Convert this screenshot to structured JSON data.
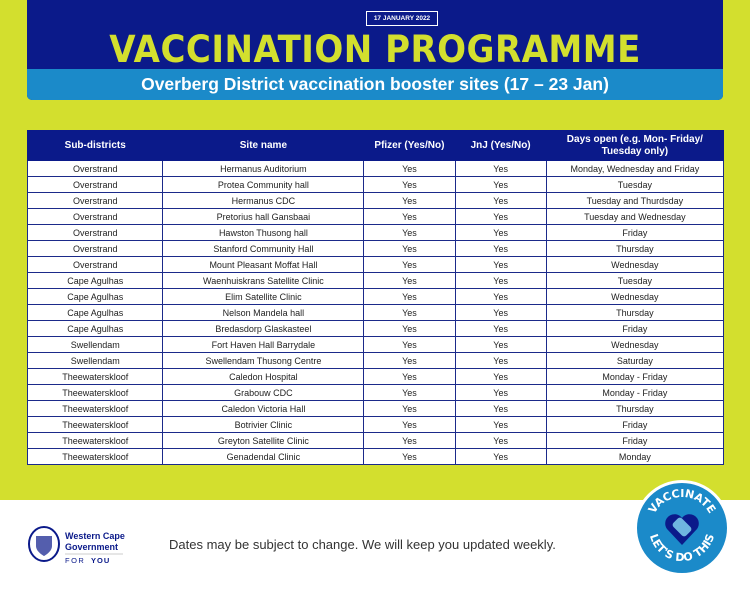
{
  "header": {
    "date": "17 JANUARY 2022",
    "title": "VACCINATION PROGRAMME",
    "subtitle": "Overberg District vaccination booster sites (17 – 23 Jan)"
  },
  "table": {
    "columns": [
      "Sub-districts",
      "Site name",
      "Pfizer (Yes/No)",
      "JnJ (Yes/No)",
      "Days open (e.g. Mon- Friday/ Tuesday only)"
    ],
    "rows": [
      [
        "Overstrand",
        "Hermanus Auditorium",
        "Yes",
        "Yes",
        "Monday, Wednesday and Friday"
      ],
      [
        "Overstrand",
        "Protea Community hall",
        "Yes",
        "Yes",
        "Tuesday"
      ],
      [
        "Overstrand",
        "Hermanus CDC",
        "Yes",
        "Yes",
        "Tuesday and Thurdsday"
      ],
      [
        "Overstrand",
        "Pretorius hall Gansbaai",
        "Yes",
        "Yes",
        "Tuesday and Wednesday"
      ],
      [
        "Overstrand",
        "Hawston Thusong hall",
        "Yes",
        "Yes",
        "Friday"
      ],
      [
        "Overstrand",
        "Stanford Community Hall",
        "Yes",
        "Yes",
        "Thursday"
      ],
      [
        "Overstrand",
        "Mount Pleasant Moffat Hall",
        "Yes",
        "Yes",
        "Wednesday"
      ],
      [
        "Cape Agulhas",
        "Waenhuiskrans Satellite Clinic",
        "Yes",
        "Yes",
        "Tuesday"
      ],
      [
        "Cape Agulhas",
        "Elim Satellite Clinic",
        "Yes",
        "Yes",
        "Wednesday"
      ],
      [
        "Cape Agulhas",
        "Nelson Mandela hall",
        "Yes",
        "Yes",
        "Thursday"
      ],
      [
        "Cape Agulhas",
        "Bredasdorp Glaskasteel",
        "Yes",
        "Yes",
        "Friday"
      ],
      [
        "Swellendam",
        "Fort Haven Hall Barrydale",
        "Yes",
        "Yes",
        "Wednesday"
      ],
      [
        "Swellendam",
        "Swellendam Thusong Centre",
        "Yes",
        "Yes",
        "Saturday"
      ],
      [
        "Theewaterskloof",
        "Caledon Hospital",
        "Yes",
        "Yes",
        "Monday - Friday"
      ],
      [
        "Theewaterskloof",
        "Grabouw CDC",
        "Yes",
        "Yes",
        "Monday - Friday"
      ],
      [
        "Theewaterskloof",
        "Caledon Victoria Hall",
        "Yes",
        "Yes",
        "Thursday"
      ],
      [
        "Theewaterskloof",
        "Botrivier Clinic",
        "Yes",
        "Yes",
        "Friday"
      ],
      [
        "Theewaterskloof",
        "Greyton Satellite Clinic",
        "Yes",
        "Yes",
        "Friday"
      ],
      [
        "Theewaterskloof",
        "Genadendal Clinic",
        "Yes",
        "Yes",
        "Monday"
      ]
    ]
  },
  "footer": {
    "logo_line1": "Western Cape",
    "logo_line2": "Government",
    "logo_for": "FOR",
    "logo_you": "YOU",
    "note": "Dates may be subject to change. We will keep you updated weekly.",
    "badge_top": "VACCINATE",
    "badge_bottom": "LET'S DO THIS"
  },
  "colors": {
    "lime": "#d3df2e",
    "navy": "#0b1a8a",
    "blue": "#1b8ac9"
  }
}
